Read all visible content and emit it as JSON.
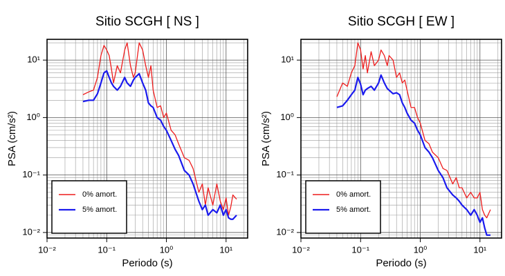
{
  "chart_data": [
    {
      "type": "line",
      "title": "Sitio SCGH [ NS ]",
      "x_label": "Periodo (s)",
      "y_label": "PSA (cm/s²)",
      "log_x": true,
      "log_y": true,
      "grid": true,
      "legend": "lower left",
      "xlim": [
        0.01,
        23
      ],
      "ylim": [
        0.008,
        23
      ],
      "xticks": [
        {
          "value": 0.01,
          "label": "10⁻²"
        },
        {
          "value": 0.1,
          "label": "10⁻¹"
        },
        {
          "value": 1,
          "label": "10⁰"
        },
        {
          "value": 10,
          "label": "10¹"
        }
      ],
      "yticks": [
        {
          "value": 0.01,
          "label": "10⁻²"
        },
        {
          "value": 0.1,
          "label": "10⁻¹"
        },
        {
          "value": 1,
          "label": "10⁰"
        },
        {
          "value": 10,
          "label": "10¹"
        }
      ],
      "x": [
        0.04,
        0.05,
        0.06,
        0.07,
        0.08,
        0.09,
        0.1,
        0.11,
        0.12,
        0.13,
        0.15,
        0.17,
        0.2,
        0.22,
        0.25,
        0.28,
        0.3,
        0.35,
        0.4,
        0.45,
        0.5,
        0.55,
        0.6,
        0.7,
        0.8,
        0.9,
        1,
        1.2,
        1.4,
        1.6,
        2,
        2.4,
        2.8,
        3.5,
        4,
        4.5,
        5,
        6,
        7,
        8,
        9,
        10,
        11,
        12,
        13,
        15
      ],
      "series": [
        {
          "name": "0% amort.",
          "color": "#ee1c1c",
          "values": [
            2.5,
            2.8,
            3,
            5,
            12,
            18,
            15,
            12,
            7,
            4,
            8,
            6,
            15,
            20,
            8,
            5,
            6,
            20,
            15,
            8,
            5,
            8,
            3,
            1.5,
            1.6,
            1.0,
            1.2,
            0.6,
            0.5,
            0.35,
            0.2,
            0.18,
            0.13,
            0.05,
            0.07,
            0.03,
            0.06,
            0.03,
            0.07,
            0.035,
            0.025,
            0.04,
            0.02,
            0.028,
            0.045,
            0.038
          ]
        },
        {
          "name": "5% amort.",
          "color": "#1a1aee",
          "values": [
            1.9,
            2.0,
            2.0,
            2.6,
            4,
            6,
            6.5,
            5,
            4,
            3.5,
            3,
            3.5,
            5,
            4,
            3.5,
            4.5,
            5,
            5.8,
            4,
            3,
            1.8,
            1.6,
            1.5,
            1.0,
            0.9,
            0.7,
            0.6,
            0.4,
            0.28,
            0.22,
            0.12,
            0.1,
            0.07,
            0.035,
            0.025,
            0.03,
            0.02,
            0.025,
            0.022,
            0.03,
            0.02,
            0.025,
            0.018,
            0.017,
            0.017,
            0.02
          ]
        }
      ]
    },
    {
      "type": "line",
      "title": "Sitio SCGH [ EW ]",
      "x_label": "Periodo (s)",
      "y_label": "PSA (cm/s²)",
      "log_x": true,
      "log_y": true,
      "grid": true,
      "legend": "lower left",
      "xlim": [
        0.01,
        23
      ],
      "ylim": [
        0.008,
        23
      ],
      "xticks": [
        {
          "value": 0.01,
          "label": "10⁻²"
        },
        {
          "value": 0.1,
          "label": "10⁻¹"
        },
        {
          "value": 1,
          "label": "10⁰"
        },
        {
          "value": 10,
          "label": "10¹"
        }
      ],
      "yticks": [
        {
          "value": 0.01,
          "label": "10⁻²"
        },
        {
          "value": 0.1,
          "label": "10⁻¹"
        },
        {
          "value": 1,
          "label": "10⁰"
        },
        {
          "value": 10,
          "label": "10¹"
        }
      ],
      "x": [
        0.04,
        0.05,
        0.06,
        0.07,
        0.08,
        0.09,
        0.1,
        0.11,
        0.12,
        0.13,
        0.15,
        0.17,
        0.2,
        0.22,
        0.25,
        0.28,
        0.3,
        0.35,
        0.4,
        0.45,
        0.5,
        0.55,
        0.6,
        0.7,
        0.8,
        0.9,
        1,
        1.2,
        1.4,
        1.6,
        2,
        2.4,
        2.8,
        3.5,
        4,
        4.5,
        5,
        6,
        7,
        8,
        9,
        10,
        11,
        12,
        13,
        15
      ],
      "series": [
        {
          "name": "0% amort.",
          "color": "#ee1c1c",
          "values": [
            2.3,
            4,
            3.5,
            6,
            8,
            20,
            15,
            7,
            12,
            6,
            14,
            8,
            10,
            15,
            12,
            8,
            12,
            10,
            5,
            6,
            4,
            4.5,
            3,
            1.5,
            1.5,
            1.0,
            0.8,
            0.4,
            0.35,
            0.25,
            0.2,
            0.13,
            0.12,
            0.07,
            0.09,
            0.06,
            0.06,
            0.04,
            0.05,
            0.04,
            0.04,
            0.05,
            0.025,
            0.02,
            0.018,
            0.025
          ]
        },
        {
          "name": "5% amort.",
          "color": "#1a1aee",
          "values": [
            1.5,
            1.6,
            2,
            2.5,
            3,
            5,
            3.8,
            2.5,
            3,
            3.2,
            3.5,
            3,
            4,
            5.5,
            4,
            3.2,
            3,
            2.6,
            2.7,
            2.5,
            1.8,
            1.5,
            1.2,
            0.9,
            0.8,
            0.6,
            0.5,
            0.3,
            0.25,
            0.2,
            0.12,
            0.09,
            0.06,
            0.045,
            0.04,
            0.035,
            0.03,
            0.025,
            0.02,
            0.025,
            0.02,
            0.015,
            0.018,
            0.012,
            0.009,
            0.009
          ]
        }
      ]
    }
  ]
}
